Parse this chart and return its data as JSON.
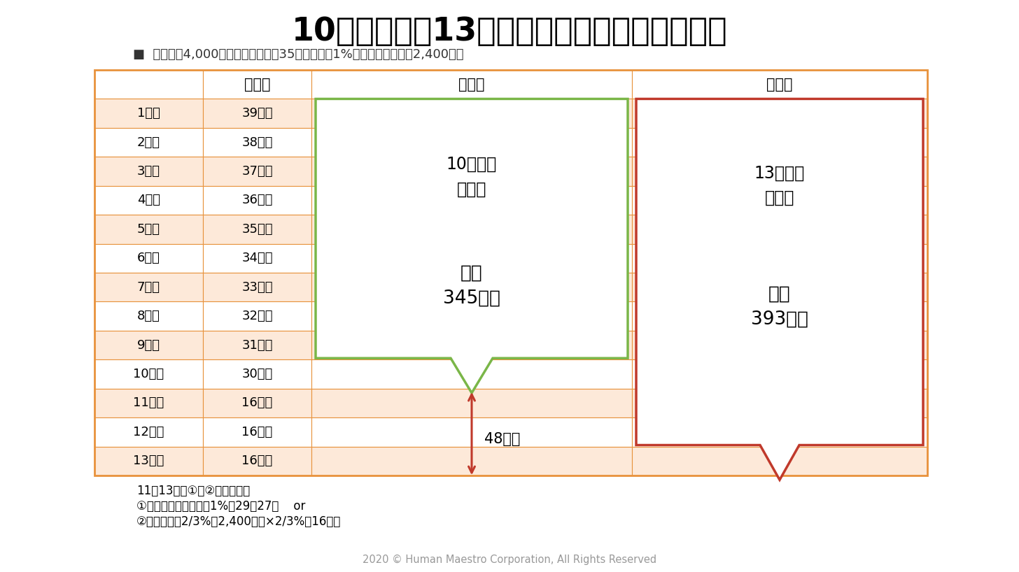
{
  "title": "10年間または13年間のローン控除の総額は？",
  "subtitle": "■  借入額：4,000万円、返済期間：35年、金利：1%、建物購入価格：2,400万円",
  "col_headers": [
    "",
    "控除額",
    "増税前",
    "増税後"
  ],
  "rows": [
    [
      "1年目",
      "39万円"
    ],
    [
      "2年目",
      "38万円"
    ],
    [
      "3年目",
      "37万円"
    ],
    [
      "4年目",
      "36万円"
    ],
    [
      "5年目",
      "35万円"
    ],
    [
      "6年目",
      "34万円"
    ],
    [
      "7年目",
      "33万円"
    ],
    [
      "8年目",
      "32万円"
    ],
    [
      "9年目",
      "31万円"
    ],
    [
      "10年目",
      "30万円"
    ],
    [
      "11年目",
      "16万円"
    ],
    [
      "12年目",
      "16万円"
    ],
    [
      "13年目",
      "16万円"
    ]
  ],
  "label_10yr_line1": "10年間の",
  "label_10yr_line2": "控除額",
  "label_10yr_total_line1": "合計",
  "label_10yr_total_line2": "345万円",
  "label_13yr_line1": "13年間の",
  "label_13yr_line2": "控除額",
  "label_13yr_total_line1": "合計",
  "label_13yr_total_line2": "393万円",
  "label_diff": "48万円",
  "footnote_line1": "11～13年目①か②の小さい額",
  "footnote_line2": "①年末のローン残高の1%：29～27万    or",
  "footnote_line3": "②建物価格の2/3%：2,400万円×2/3%＝16万円",
  "copyright": "2020 © Human Maestro Corporation, All Rights Reserved",
  "bg_color": "#ffffff",
  "header_bg": "#ffffff",
  "cell_bg_odd": "#fde9d9",
  "cell_bg_even": "#ffffff",
  "table_border_color": "#e8923c",
  "green_color": "#7ab648",
  "red_color": "#c0392b",
  "title_color": "#000000",
  "text_color": "#000000",
  "subtitle_color": "#333333",
  "copyright_color": "#999999"
}
